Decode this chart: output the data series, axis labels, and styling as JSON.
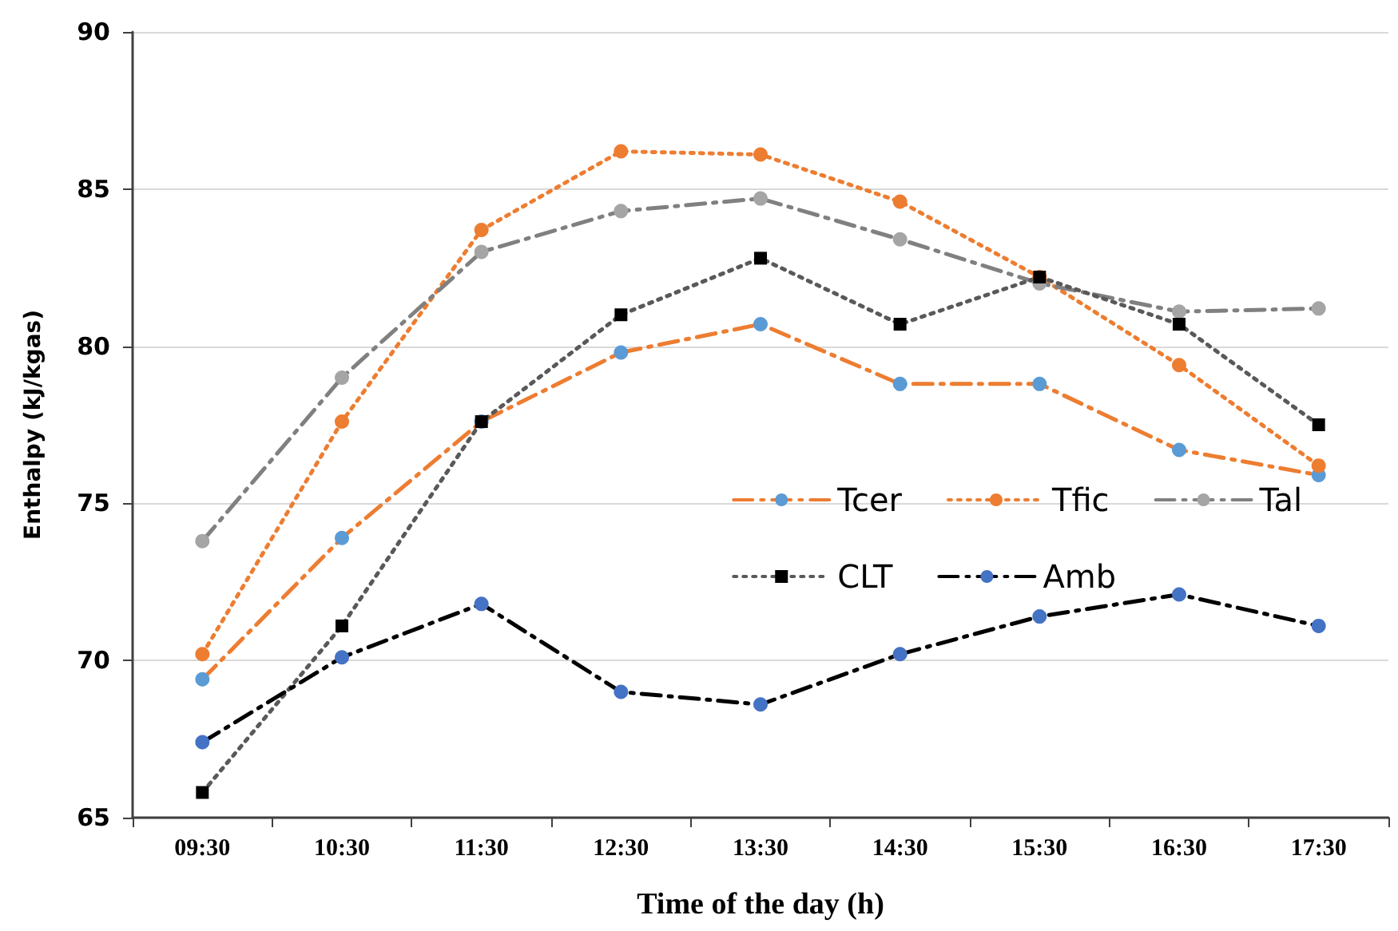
{
  "chart_data": {
    "type": "line",
    "xlabel": "Time of the day (h)",
    "ylabel": "Enthalpy (kJ/kgas)",
    "categories": [
      "09:30",
      "10:30",
      "11:30",
      "12:30",
      "13:30",
      "14:30",
      "15:30",
      "16:30",
      "17:30"
    ],
    "ylim": [
      65,
      90
    ],
    "yticks": [
      65,
      70,
      75,
      80,
      85,
      90
    ],
    "grid": "y",
    "legend": "right",
    "marker": "circle",
    "series": [
      {
        "name": "Tcer",
        "color": "#ed7d31",
        "line_style": "dashed",
        "colors": [
          "#5b9bd5",
          "#5b9bd5",
          "#5b9bd5",
          "#5b9bd5",
          "#5b9bd5",
          "#5b9bd5",
          "#5b9bd5",
          "#5b9bd5",
          "#5b9bd5"
        ],
        "values": [
          69.4,
          73.9,
          77.6,
          79.8,
          80.7,
          78.8,
          78.8,
          76.7,
          75.9
        ]
      },
      {
        "name": "Tfic",
        "color": "#ed7d31",
        "line_style": "dotted",
        "values": [
          70.2,
          77.6,
          83.7,
          86.2,
          86.1,
          84.6,
          82.2,
          79.4,
          76.2
        ]
      },
      {
        "name": "Tal",
        "color": "#808080",
        "line_style": "dashed",
        "colors": [
          "#a5a5a5",
          "#a5a5a5",
          "#a5a5a5",
          "#a5a5a5",
          "#a5a5a5",
          "#a5a5a5",
          "#a5a5a5",
          "#a5a5a5",
          "#a5a5a5"
        ],
        "values": [
          73.8,
          79.0,
          83.0,
          84.3,
          84.7,
          83.4,
          82.0,
          81.1,
          81.2
        ]
      },
      {
        "name": "CLT",
        "color": "#595959",
        "line_style": "dotted",
        "marker": "square",
        "colors": [
          "#000000",
          "#000000",
          "#000000",
          "#000000",
          "#000000",
          "#000000",
          "#000000",
          "#000000",
          "#000000"
        ],
        "values": [
          65.8,
          71.1,
          77.6,
          81.0,
          82.8,
          80.7,
          82.2,
          80.7,
          77.5
        ]
      },
      {
        "name": "Amb",
        "color": "#000000",
        "line_style": "dashed",
        "colors": [
          "#4472c4",
          "#4472c4",
          "#4472c4",
          "#4472c4",
          "#4472c4",
          "#4472c4",
          "#4472c4",
          "#4472c4",
          "#4472c4"
        ],
        "values": [
          67.4,
          70.1,
          71.8,
          69.0,
          68.6,
          70.2,
          71.4,
          72.1,
          71.1
        ]
      }
    ]
  }
}
